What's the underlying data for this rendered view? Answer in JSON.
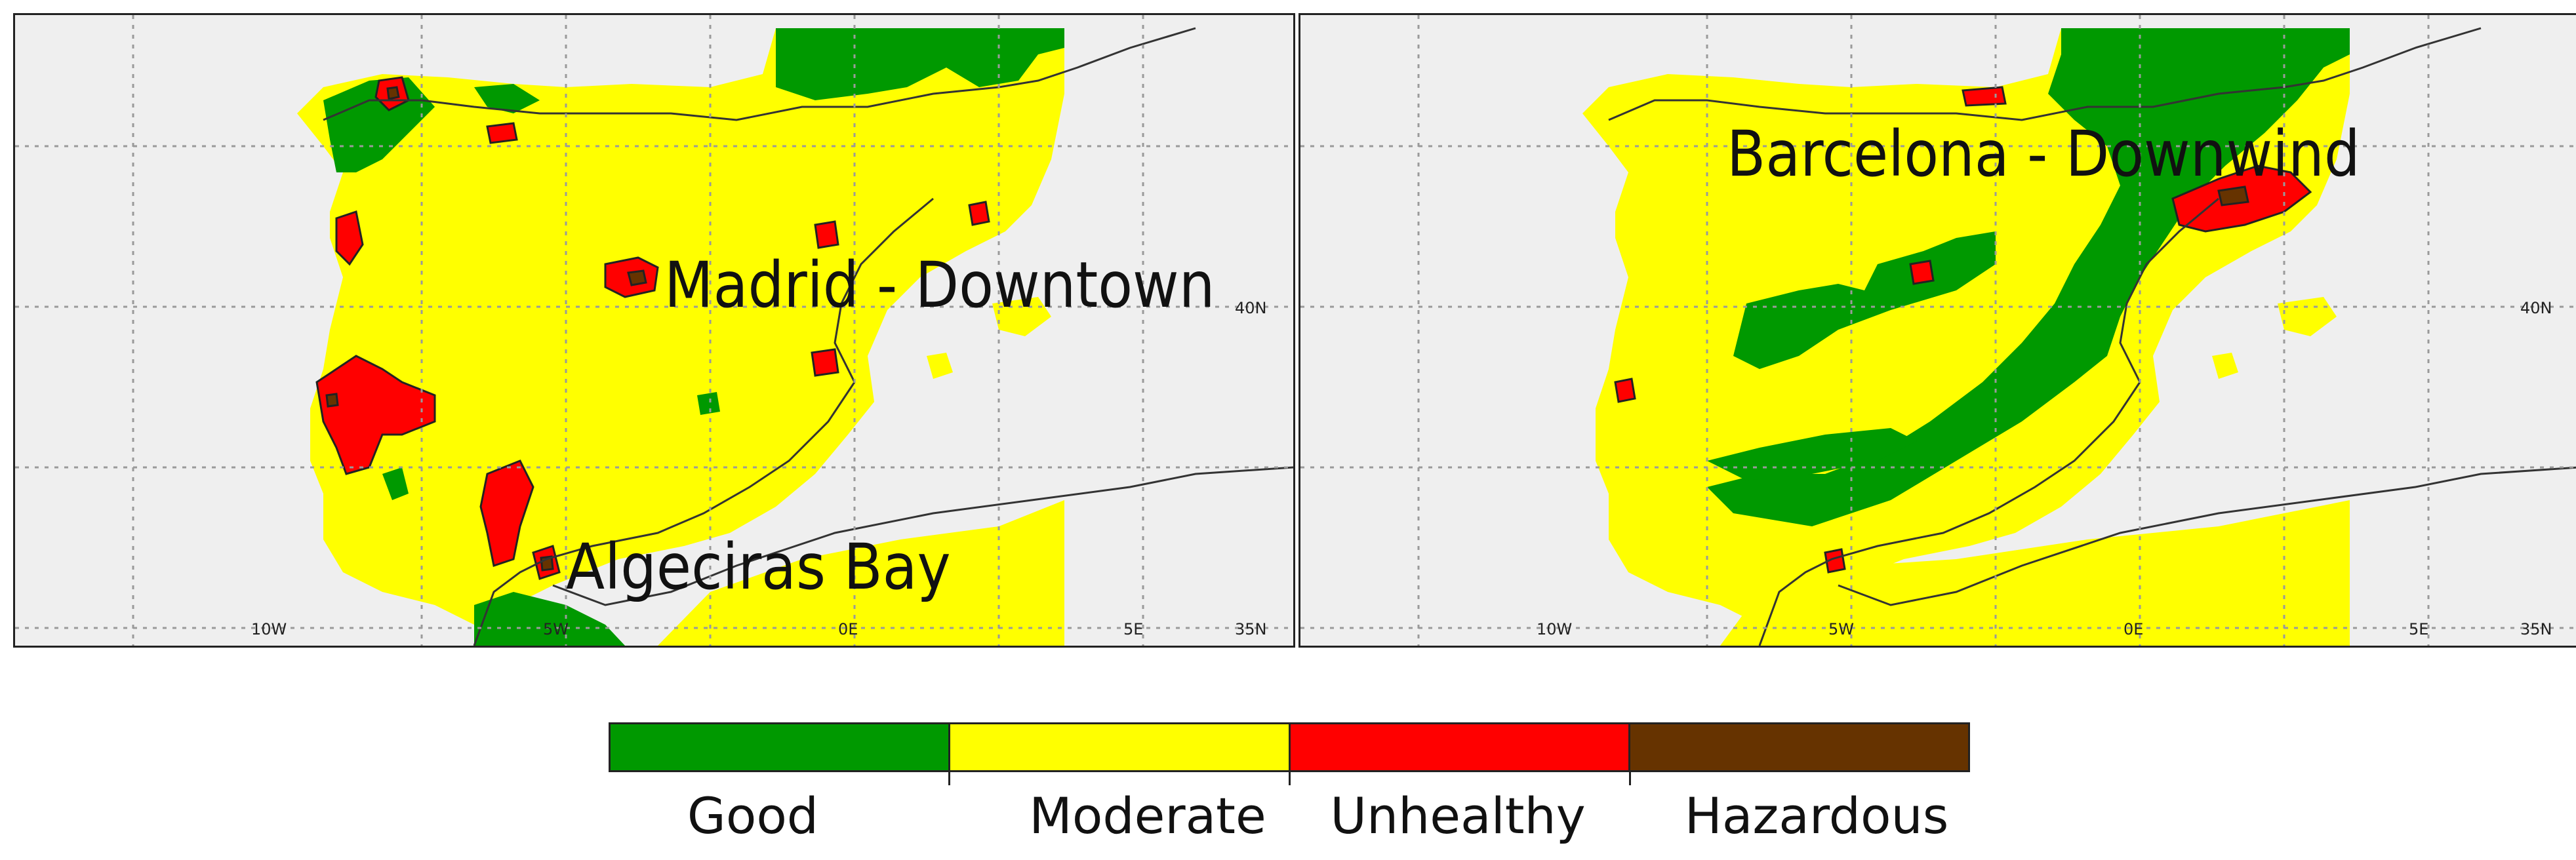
{
  "panels": [
    {
      "id": "left",
      "labels": {
        "madrid": "Madrid - Downtown",
        "algeciras": "Algeciras Bay"
      },
      "ticks": {
        "lat_40": "40N",
        "lat_35": "35N",
        "lon_10w": "10W",
        "lon_5w": "5W",
        "lon_0e": "0E",
        "lon_5e": "5E"
      }
    },
    {
      "id": "right",
      "labels": {
        "barcelona": "Barcelona - Downwind"
      },
      "ticks": {
        "lat_40": "40N",
        "lat_35": "35N",
        "lon_10w": "10W",
        "lon_5w": "5W",
        "lon_0e": "0E",
        "lon_5e": "5E"
      }
    }
  ],
  "legend": {
    "categories": [
      {
        "label": "Good",
        "color": "#009900"
      },
      {
        "label": "Moderate",
        "color": "#ffff00"
      },
      {
        "label": "Unhealthy",
        "color": "#ff0000"
      },
      {
        "label": "Hazardous",
        "color": "#663300"
      }
    ]
  },
  "colors": {
    "ocean": "#efefef",
    "good": "#009900",
    "moderate": "#ffff00",
    "unhealthy": "#ff0000",
    "hazardous": "#663300"
  }
}
